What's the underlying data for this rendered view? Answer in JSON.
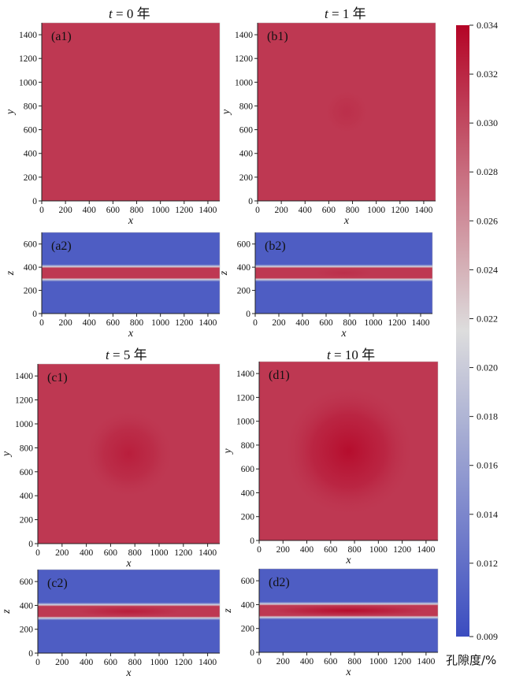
{
  "figure_titles": [
    {
      "var": "t",
      "rest": " = 0 年"
    },
    {
      "var": "t",
      "rest": " = 1 年"
    },
    {
      "var": "t",
      "rest": " = 5 年"
    },
    {
      "var": "t",
      "rest": " = 10 年"
    }
  ],
  "colorbar": {
    "label": "孔隙度/%",
    "min": 0.009,
    "max": 0.034,
    "tick_labels": [
      "0.034",
      "0.032",
      "0.030",
      "0.028",
      "0.026",
      "0.024",
      "0.022",
      "0.020",
      "0.018",
      "0.016",
      "0.014",
      "0.012",
      "0.009"
    ],
    "colormap": "cool-to-warm",
    "colors": {
      "low": "#3b4cc0",
      "mid": "#dddddd",
      "high": "#b40426"
    }
  },
  "chart_data": [
    {
      "type": "heatmap",
      "panel_label": "(a1)",
      "time_years": 0,
      "view": "x-y plane",
      "xlabel": "x",
      "ylabel": "y",
      "xlim": [
        0,
        1500
      ],
      "ylim": [
        0,
        1500
      ],
      "x_ticks": [
        "0",
        "200",
        "400",
        "600",
        "800",
        "1000",
        "1200",
        "1400"
      ],
      "y_ticks": [
        "0",
        "200",
        "400",
        "600",
        "800",
        "1000",
        "1200",
        "1400"
      ],
      "porosity_background": 0.031,
      "porosity_center": 0.031,
      "center": [
        750,
        750
      ],
      "plume_radius": 0
    },
    {
      "type": "heatmap",
      "panel_label": "(b1)",
      "time_years": 1,
      "view": "x-y plane",
      "xlabel": "x",
      "ylabel": "y",
      "xlim": [
        0,
        1500
      ],
      "ylim": [
        0,
        1500
      ],
      "x_ticks": [
        "0",
        "200",
        "400",
        "600",
        "800",
        "1000",
        "1200",
        "1400"
      ],
      "y_ticks": [
        "0",
        "200",
        "400",
        "600",
        "800",
        "1000",
        "1200",
        "1400"
      ],
      "porosity_background": 0.031,
      "porosity_center": 0.0315,
      "center": [
        750,
        750
      ],
      "plume_radius": 200
    },
    {
      "type": "heatmap",
      "panel_label": "(c1)",
      "time_years": 5,
      "view": "x-y plane",
      "xlabel": "x",
      "ylabel": "y",
      "xlim": [
        0,
        1500
      ],
      "ylim": [
        0,
        1500
      ],
      "x_ticks": [
        "0",
        "200",
        "400",
        "600",
        "800",
        "1000",
        "1200",
        "1400"
      ],
      "y_ticks": [
        "0",
        "200",
        "400",
        "600",
        "800",
        "1000",
        "1200",
        "1400"
      ],
      "porosity_background": 0.031,
      "porosity_center": 0.0325,
      "center": [
        750,
        750
      ],
      "plume_radius": 380
    },
    {
      "type": "heatmap",
      "panel_label": "(d1)",
      "time_years": 10,
      "view": "x-y plane",
      "xlabel": "x",
      "ylabel": "y",
      "xlim": [
        0,
        1500
      ],
      "ylim": [
        0,
        1500
      ],
      "x_ticks": [
        "0",
        "200",
        "400",
        "600",
        "800",
        "1000",
        "1200",
        "1400"
      ],
      "y_ticks": [
        "0",
        "200",
        "400",
        "600",
        "800",
        "1000",
        "1200",
        "1400"
      ],
      "porosity_background": 0.031,
      "porosity_center": 0.0335,
      "center": [
        750,
        750
      ],
      "plume_radius": 560
    },
    {
      "type": "heatmap",
      "panel_label": "(a2)",
      "time_years": 0,
      "view": "x-z section",
      "xlabel": "x",
      "ylabel": "z",
      "xlim": [
        0,
        1500
      ],
      "ylim": [
        0,
        700
      ],
      "x_ticks": [
        "0",
        "200",
        "400",
        "600",
        "800",
        "1000",
        "1200",
        "1400"
      ],
      "y_ticks": [
        "0",
        "200",
        "400",
        "600"
      ],
      "porosity_outside": 0.0105,
      "porosity_layer": 0.031,
      "layer_z": [
        300,
        400
      ],
      "layer_peak": 0.031
    },
    {
      "type": "heatmap",
      "panel_label": "(b2)",
      "time_years": 1,
      "view": "x-z section",
      "xlabel": "x",
      "ylabel": "z",
      "xlim": [
        0,
        1500
      ],
      "ylim": [
        0,
        700
      ],
      "x_ticks": [
        "0",
        "200",
        "400",
        "600",
        "800",
        "1000",
        "1200",
        "1400"
      ],
      "y_ticks": [
        "0",
        "200",
        "400",
        "600"
      ],
      "porosity_outside": 0.0105,
      "porosity_layer": 0.031,
      "layer_z": [
        300,
        400
      ],
      "layer_peak": 0.0315
    },
    {
      "type": "heatmap",
      "panel_label": "(c2)",
      "time_years": 5,
      "view": "x-z section",
      "xlabel": "x",
      "ylabel": "z",
      "xlim": [
        0,
        1500
      ],
      "ylim": [
        0,
        700
      ],
      "x_ticks": [
        "0",
        "200",
        "400",
        "600",
        "800",
        "1000",
        "1200",
        "1400"
      ],
      "y_ticks": [
        "0",
        "200",
        "400",
        "600"
      ],
      "porosity_outside": 0.0105,
      "porosity_layer": 0.031,
      "layer_z": [
        300,
        400
      ],
      "layer_peak": 0.0325
    },
    {
      "type": "heatmap",
      "panel_label": "(d2)",
      "time_years": 10,
      "view": "x-z section",
      "xlabel": "x",
      "ylabel": "z",
      "xlim": [
        0,
        1500
      ],
      "ylim": [
        0,
        700
      ],
      "x_ticks": [
        "0",
        "200",
        "400",
        "600",
        "800",
        "1000",
        "1200",
        "1400"
      ],
      "y_ticks": [
        "0",
        "200",
        "400",
        "600"
      ],
      "porosity_outside": 0.0105,
      "porosity_layer": 0.031,
      "layer_z": [
        300,
        400
      ],
      "layer_peak": 0.0335
    }
  ]
}
